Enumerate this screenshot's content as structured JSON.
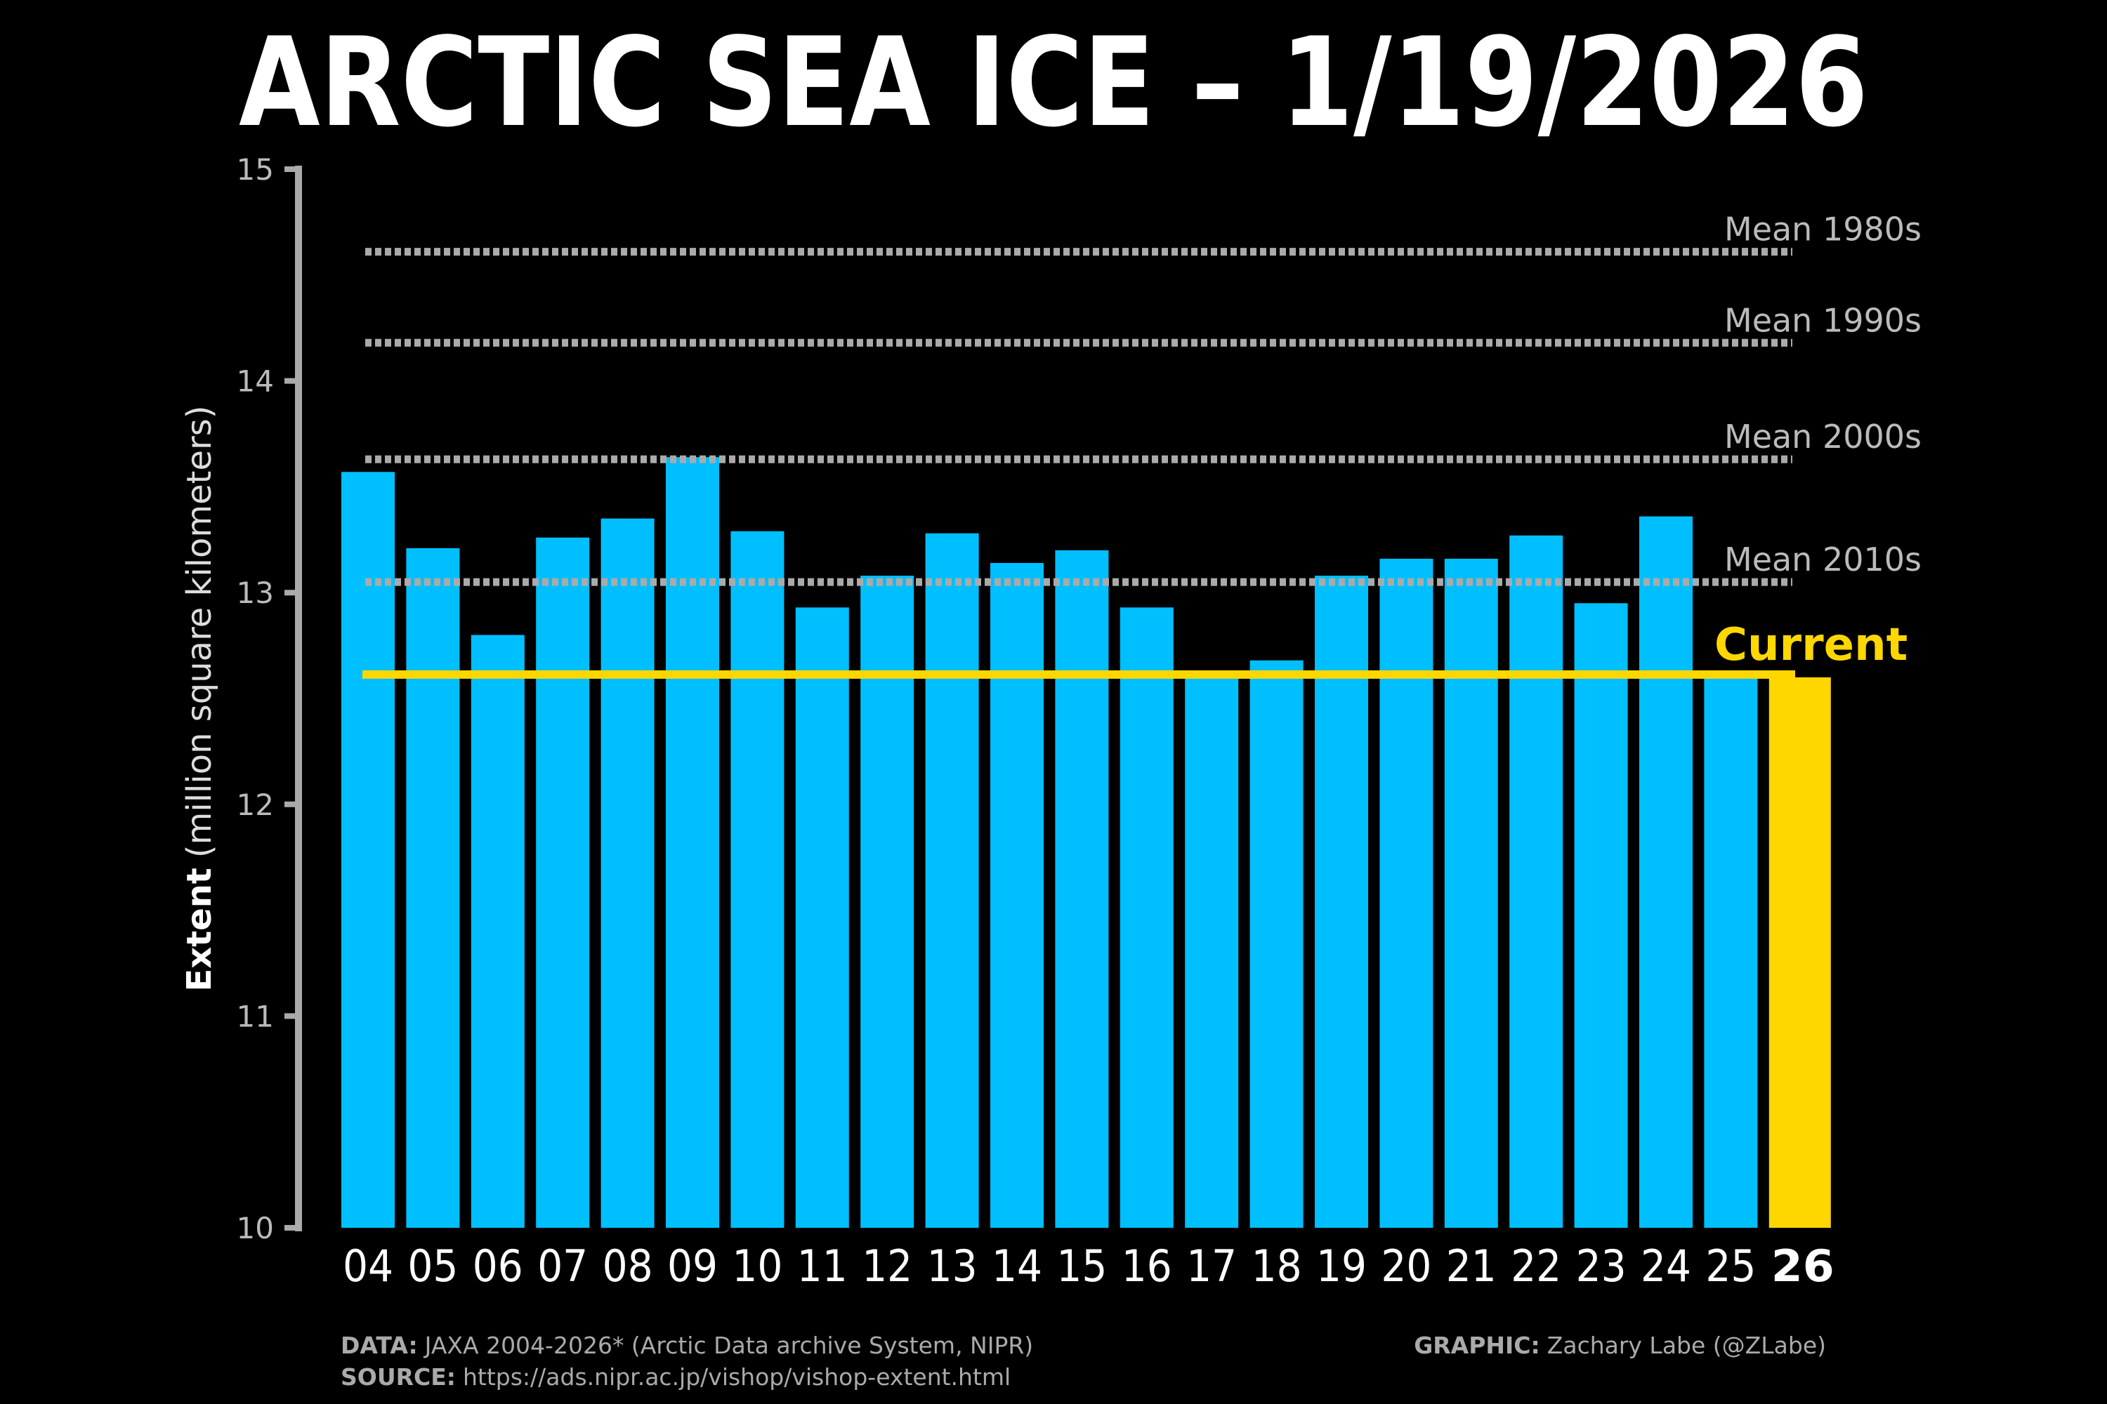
{
  "chart_data": {
    "type": "bar",
    "title": "ARCTIC SEA ICE – 1/19/2026",
    "ylabel_bold": "Extent",
    "ylabel_rest": "(million square kilometers)",
    "xlabel": "",
    "ylim": [
      10,
      15
    ],
    "yticks": [
      "10",
      "11",
      "12",
      "13",
      "14",
      "15"
    ],
    "categories": [
      "04",
      "05",
      "06",
      "07",
      "08",
      "09",
      "10",
      "11",
      "12",
      "13",
      "14",
      "15",
      "16",
      "17",
      "18",
      "19",
      "20",
      "21",
      "22",
      "23",
      "24",
      "25",
      "26"
    ],
    "values": [
      13.57,
      13.21,
      12.8,
      13.26,
      13.35,
      13.64,
      13.29,
      12.93,
      13.08,
      13.28,
      13.14,
      13.2,
      12.93,
      12.63,
      12.68,
      13.08,
      13.16,
      13.16,
      13.27,
      12.95,
      13.36,
      12.63,
      12.6
    ],
    "highlight_index": 22,
    "bar_color": "#00BFFF",
    "highlight_color": "#FFD700",
    "reference_lines": [
      {
        "label": "Mean 1980s",
        "value": 14.61
      },
      {
        "label": "Mean 1990s",
        "value": 14.18
      },
      {
        "label": "Mean 2000s",
        "value": 13.63
      },
      {
        "label": "Mean 2010s",
        "value": 13.05
      }
    ],
    "current": {
      "label": "Current",
      "value": 12.6
    },
    "grid": false
  },
  "footer": {
    "data_label": "DATA:",
    "data_text": "JAXA 2004-2026* (Arctic Data archive System, NIPR)",
    "source_label": "SOURCE:",
    "source_text": "https://ads.nipr.ac.jp/vishop/vishop-extent.html",
    "graphic_label": "GRAPHIC:",
    "graphic_text": "Zachary Labe (@ZLabe)"
  }
}
